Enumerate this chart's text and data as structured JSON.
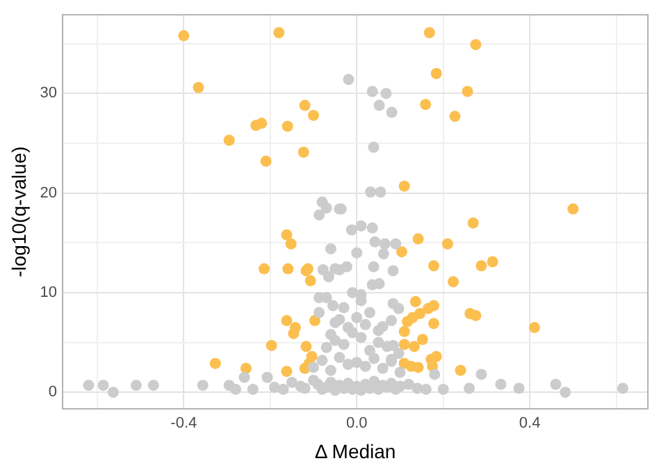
{
  "chart_data": {
    "type": "scatter",
    "xlabel": "Δ Median",
    "ylabel": "-log10(q-value)",
    "xlim": [
      -0.68,
      0.673
    ],
    "ylim": [
      -1.66,
      37.9
    ],
    "xticks": [
      {
        "value": -0.6,
        "label": null
      },
      {
        "value": -0.4,
        "label": "-0.4"
      },
      {
        "value": -0.2,
        "label": null
      },
      {
        "value": 0,
        "label": "0.0"
      },
      {
        "value": 0.2,
        "label": null
      },
      {
        "value": 0.4,
        "label": "0.4"
      },
      {
        "value": 0.6,
        "label": null
      }
    ],
    "yticks": [
      0,
      {
        "value": 5,
        "label": null
      },
      10,
      {
        "value": 15,
        "label": null
      },
      20,
      {
        "value": 25,
        "label": null
      },
      30,
      {
        "value": 35,
        "label": null
      }
    ],
    "grid": true,
    "marker": "circle",
    "legend": false,
    "series": [
      {
        "color": "#cccccc",
        "x": [
          -0.62,
          -0.586,
          -0.563,
          -0.51,
          -0.47,
          -0.356,
          -0.295,
          -0.26,
          -0.28,
          -0.24,
          -0.207,
          0.288,
          0.333,
          0.375,
          0.46,
          0.482,
          0.615,
          0.26,
          0.2,
          -0.019,
          0.036,
          0.068,
          0.052,
          0.081,
          0.039,
          0.032,
          0.055,
          -0.036,
          -0.08,
          -0.07,
          -0.087,
          -0.04,
          -0.06,
          -0.078,
          -0.04,
          -0.065,
          -0.087,
          -0.07,
          -0.055,
          -0.087,
          -0.04,
          -0.012,
          0.01,
          0.036,
          0.042,
          0.065,
          0.09,
          0,
          0.062,
          0.039,
          0.084,
          -0.023,
          -0.05,
          0.052,
          0.036,
          0.01,
          0.084,
          0.097,
          0.08,
          0.084,
          0.097,
          0.08,
          0.18,
          -0.19,
          -0.17,
          -0.15,
          -0.13,
          -0.12,
          -0.1,
          -0.09,
          -0.08,
          -0.07,
          -0.06,
          -0.05,
          -0.04,
          -0.03,
          -0.02,
          -0.01,
          0,
          0.01,
          0.02,
          0.03,
          0.04,
          0.05,
          0.06,
          0.07,
          0.08,
          0.09,
          0.1,
          0.12,
          0.14,
          0.16,
          -0.1,
          -0.08,
          -0.06,
          -0.04,
          -0.02,
          0,
          0.02,
          0.04,
          0.06,
          0.08,
          0.1,
          -0.07,
          -0.05,
          -0.03,
          -0.01,
          0.01,
          0.03,
          0.05,
          0.07,
          -0.05,
          -0.02,
          0.02,
          0.05,
          -0.03,
          0,
          0.03,
          -0.06,
          0.06,
          -0.01,
          0.01
        ],
        "values": [
          0.7,
          0.7,
          0,
          0.7,
          0.7,
          0.7,
          0.7,
          1.5,
          0.3,
          0.3,
          1.5,
          1.8,
          0.8,
          0.4,
          0.8,
          0,
          0.4,
          0.4,
          0.3,
          31.4,
          30.2,
          30,
          28.8,
          28.1,
          24.6,
          20.1,
          20.1,
          18.4,
          19.1,
          18.5,
          17.8,
          18.4,
          14.4,
          12.3,
          12.3,
          11.6,
          9.5,
          9.5,
          8.7,
          8,
          7.3,
          16.3,
          16.7,
          16.5,
          15.1,
          14.9,
          14.9,
          14,
          13.9,
          12.6,
          12.2,
          12.6,
          12.4,
          10.9,
          10.8,
          9.8,
          8.9,
          8.4,
          7.2,
          4.7,
          3.9,
          3.3,
          1.8,
          0.5,
          0.3,
          1,
          0.6,
          0.4,
          1.2,
          0.8,
          0.3,
          0.5,
          1,
          0.2,
          0.7,
          0.4,
          0.9,
          0.3,
          0.6,
          0.2,
          0.8,
          0.4,
          1.1,
          0.3,
          0.7,
          0.5,
          0.9,
          0.3,
          0.6,
          0.8,
          0.4,
          0.3,
          2.5,
          3.2,
          2.2,
          3.5,
          2.8,
          3,
          2.6,
          3.4,
          2.4,
          3.1,
          2,
          4.5,
          5.2,
          4.8,
          6,
          5.5,
          4.2,
          5,
          4.6,
          7,
          6.5,
          6.8,
          6.2,
          8.5,
          7.5,
          8,
          5.8,
          6.6,
          10,
          9.2
        ]
      },
      {
        "color": "#fbbf50",
        "x": [
          -0.4,
          -0.18,
          -0.366,
          -0.295,
          -0.233,
          -0.22,
          -0.16,
          -0.12,
          -0.1,
          -0.21,
          -0.123,
          0.168,
          0.275,
          0.184,
          0.256,
          0.159,
          0.227,
          0.11,
          0.5,
          -0.162,
          -0.152,
          -0.214,
          -0.159,
          -0.117,
          -0.113,
          -0.107,
          -0.162,
          -0.142,
          -0.146,
          -0.097,
          -0.197,
          -0.117,
          -0.327,
          -0.256,
          -0.162,
          -0.104,
          -0.11,
          -0.12,
          0.269,
          0.142,
          0.21,
          0.104,
          0.314,
          0.288,
          0.178,
          0.223,
          0.136,
          0.178,
          0.165,
          0.146,
          0.129,
          0.117,
          0.262,
          0.275,
          0.178,
          0.411,
          0.11,
          0.152,
          0.11,
          0.133,
          0.184,
          0.172,
          0.11,
          0.126,
          0.142,
          0.175,
          0.24
        ],
        "values": [
          35.8,
          36.1,
          30.6,
          25.3,
          26.8,
          27,
          26.7,
          28.8,
          27.8,
          23.2,
          24.1,
          36.1,
          34.9,
          32,
          30.2,
          28.9,
          27.7,
          20.7,
          18.4,
          15.8,
          14.9,
          12.4,
          12.4,
          12.2,
          12.4,
          11.2,
          7.2,
          6.5,
          5.9,
          7.2,
          4.7,
          4.6,
          2.9,
          2.4,
          2.1,
          3.6,
          2.9,
          2.4,
          17,
          15.4,
          14.9,
          14.1,
          13.1,
          12.7,
          12.7,
          11.1,
          9.1,
          8.7,
          8.4,
          7.9,
          7.5,
          7.1,
          7.9,
          7.7,
          6.9,
          6.5,
          6.1,
          5.3,
          4.8,
          4.6,
          3.6,
          3.3,
          2.9,
          2.6,
          2.5,
          2.6,
          2.2
        ]
      }
    ]
  }
}
